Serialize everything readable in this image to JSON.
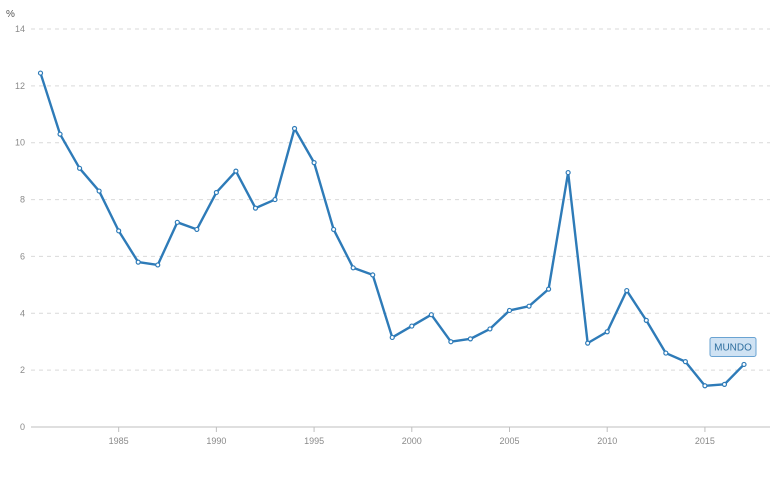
{
  "chart_data": {
    "type": "line",
    "ylabel": "%",
    "xlim": [
      1981,
      2017
    ],
    "ylim": [
      0,
      14
    ],
    "x_ticks": [
      1985,
      1990,
      1995,
      2000,
      2005,
      2010,
      2015
    ],
    "y_ticks": [
      0,
      2,
      4,
      6,
      8,
      10,
      12,
      14
    ],
    "grid": true,
    "series": [
      {
        "name": "MUNDO",
        "color": "#2e7bb8",
        "x": [
          1981,
          1982,
          1983,
          1984,
          1985,
          1986,
          1987,
          1988,
          1989,
          1990,
          1991,
          1992,
          1993,
          1994,
          1995,
          1996,
          1997,
          1998,
          1999,
          2000,
          2001,
          2002,
          2003,
          2004,
          2005,
          2006,
          2007,
          2008,
          2009,
          2010,
          2011,
          2012,
          2013,
          2014,
          2015,
          2016,
          2017
        ],
        "y": [
          12.45,
          10.3,
          9.1,
          8.3,
          6.9,
          5.8,
          5.7,
          7.2,
          6.95,
          8.25,
          9.0,
          7.7,
          8.0,
          10.5,
          9.3,
          6.95,
          5.6,
          5.35,
          3.15,
          3.55,
          3.95,
          3.0,
          3.1,
          3.45,
          4.1,
          4.25,
          4.85,
          8.95,
          2.95,
          3.35,
          4.8,
          3.75,
          2.6,
          2.3,
          1.45,
          1.5,
          2.2
        ]
      }
    ]
  }
}
